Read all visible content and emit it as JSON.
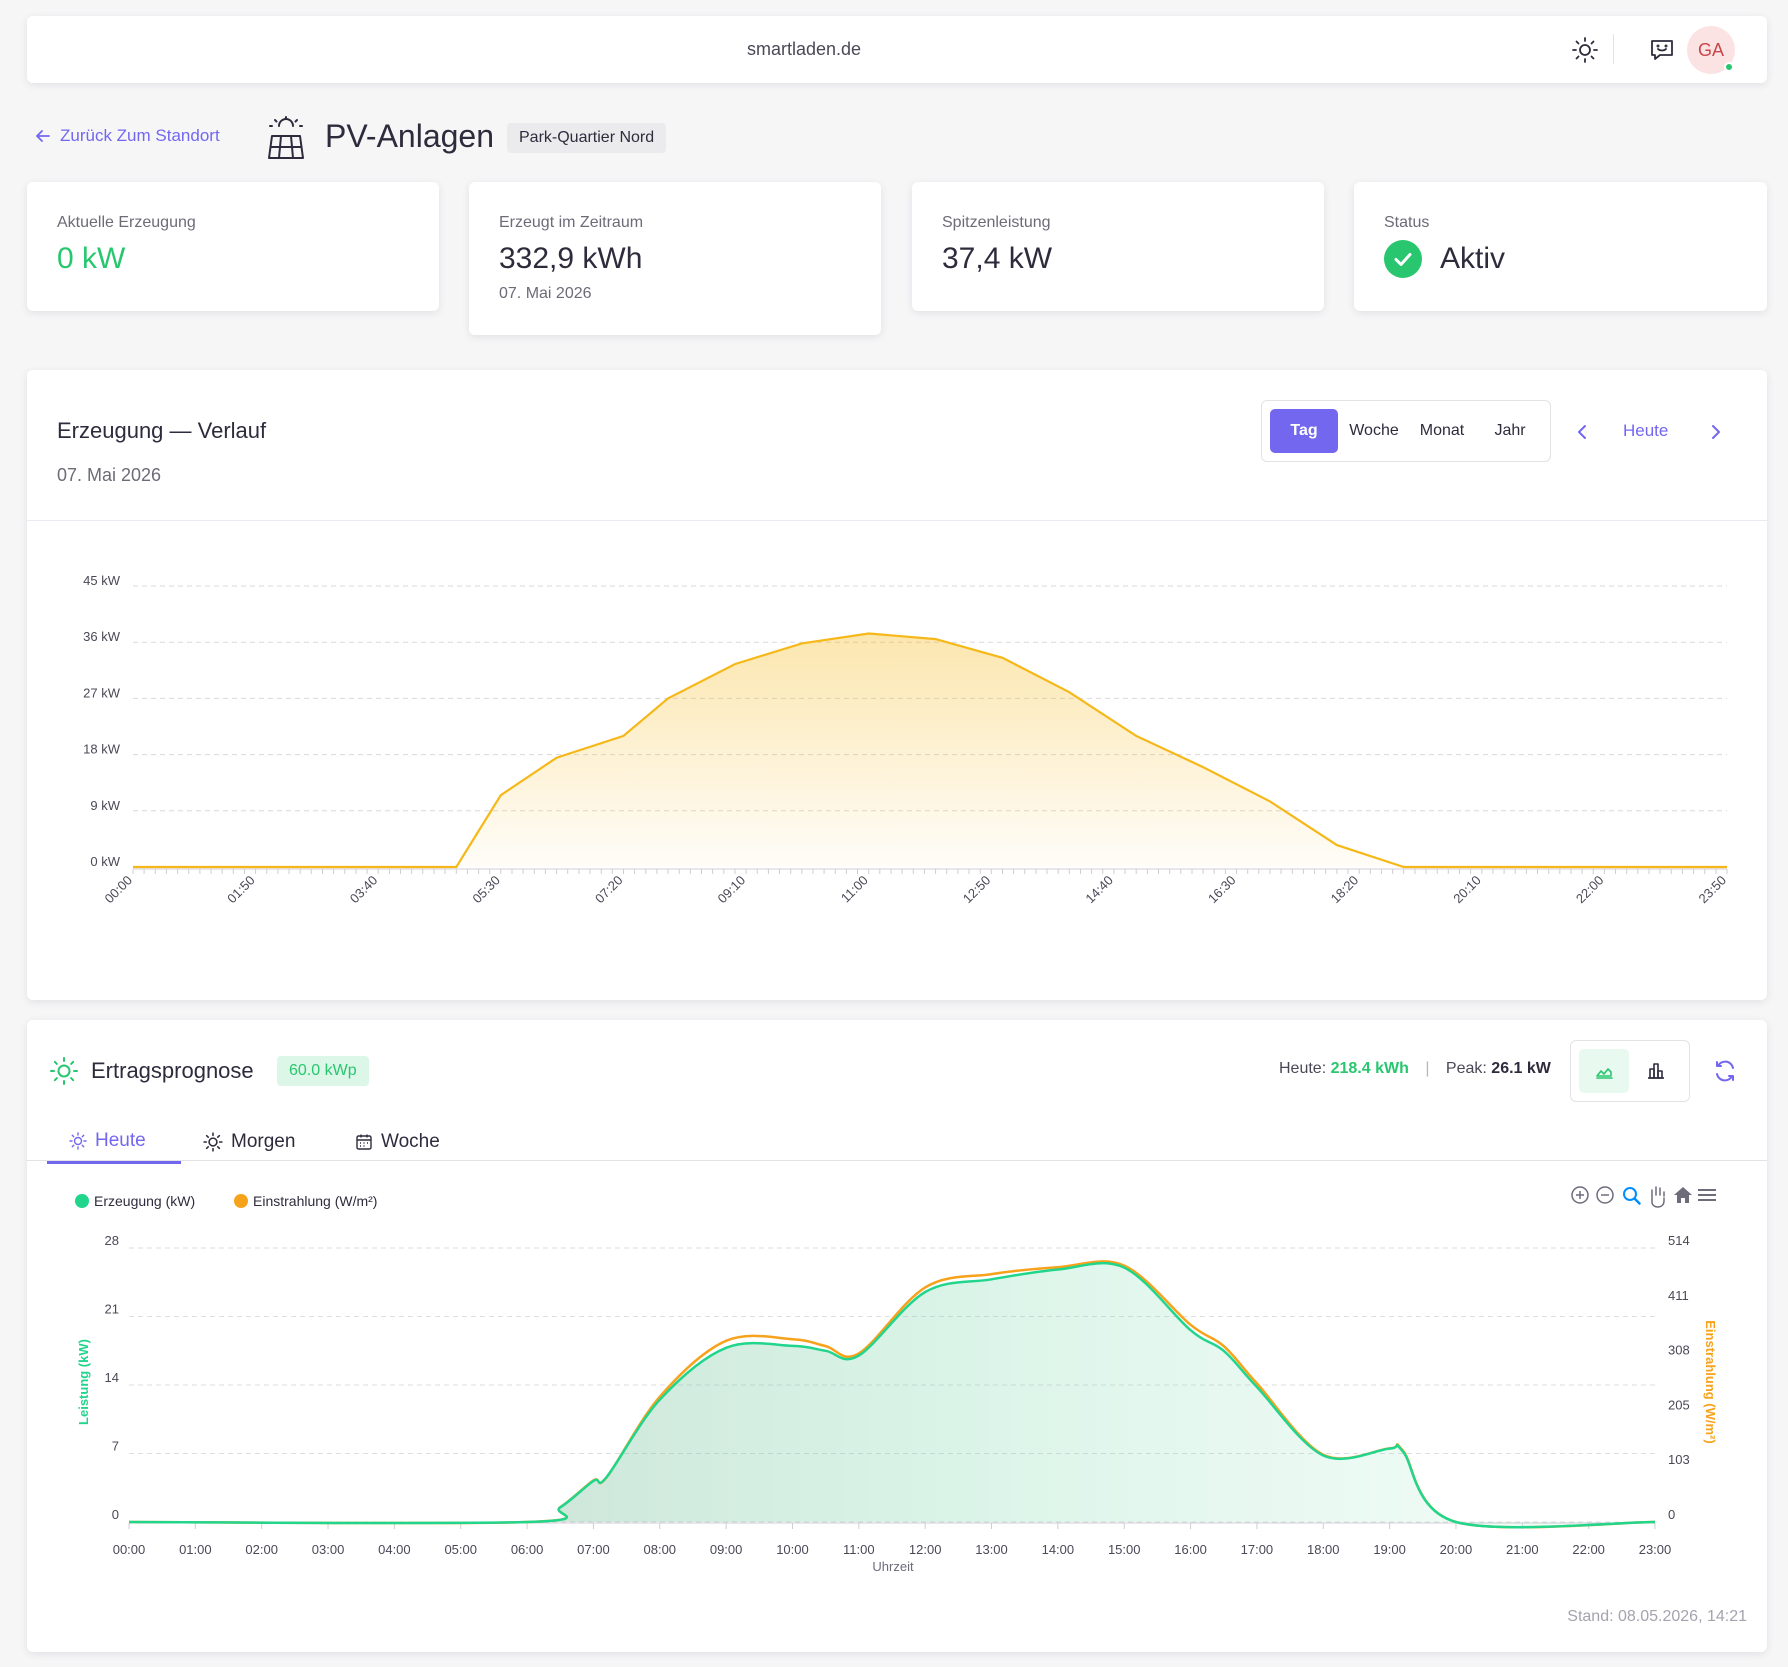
{
  "topbar": {
    "site": "smartladen.de",
    "avatar_initials": "GA"
  },
  "header": {
    "back_label": "Zurück Zum Standort",
    "title": "PV-Anlagen",
    "location": "Park-Quartier Nord"
  },
  "kpis": {
    "current": {
      "label": "Aktuelle Erzeugung",
      "value": "0 kW"
    },
    "period": {
      "label": "Erzeugt im Zeitraum",
      "value": "332,9 kWh",
      "sub": "07. Mai 2026"
    },
    "peak": {
      "label": "Spitzenleistung",
      "value": "37,4 kW"
    },
    "status": {
      "label": "Status",
      "value": "Aktiv"
    }
  },
  "generation": {
    "title": "Erzeugung — Verlauf",
    "date": "07. Mai 2026",
    "ranges": [
      "Tag",
      "Woche",
      "Monat",
      "Jahr"
    ],
    "active_range": "Tag",
    "today_label": "Heute"
  },
  "forecast": {
    "title": "Ertragsprognose",
    "kwp": "60.0 kWp",
    "today_prefix": "Heute:",
    "today_value": "218.4 kWh",
    "peak_prefix": "Peak:",
    "peak_value": "26.1 kW",
    "tabs": [
      "Heute",
      "Morgen",
      "Woche"
    ],
    "active_tab": "Heute",
    "stand": "Stand: 08.05.2026, 14:21"
  },
  "chart_data": [
    {
      "type": "area",
      "ylim": [
        0,
        45
      ],
      "y_ticks": [
        "0 kW",
        "9 kW",
        "18 kW",
        "27 kW",
        "36 kW",
        "45 kW"
      ],
      "x_ticks": [
        "00:00",
        "01:50",
        "03:40",
        "05:30",
        "07:20",
        "09:10",
        "11:00",
        "12:50",
        "14:40",
        "16:30",
        "18:20",
        "20:10",
        "22:00",
        "23:50"
      ],
      "grid": true,
      "color": "#f6b819",
      "x": [
        "00:00",
        "04:50",
        "05:30",
        "06:20",
        "07:20",
        "08:00",
        "09:00",
        "10:00",
        "11:00",
        "12:00",
        "13:00",
        "14:00",
        "15:00",
        "16:00",
        "17:00",
        "18:00",
        "19:00",
        "20:10",
        "23:50"
      ],
      "values": [
        0,
        0,
        11.5,
        17.5,
        21,
        27,
        32.5,
        35.8,
        37.4,
        36.5,
        33.5,
        28,
        21,
        16,
        10.5,
        3.5,
        0,
        0,
        0
      ]
    },
    {
      "type": "area",
      "legend": [
        "Erzeugung (kW)",
        "Einstrahlung (W/m²)"
      ],
      "legend_placement": "top-left",
      "xlabel": "Uhrzeit",
      "ylabel_left": "Leistung (kW)",
      "ylabel_right": "Einstrahlung (W/m²)",
      "ylim_left": [
        0,
        28
      ],
      "ylim_right": [
        0,
        514
      ],
      "y_ticks_left": [
        "0",
        "7",
        "14",
        "21",
        "28"
      ],
      "y_ticks_right": [
        "0",
        "103",
        "205",
        "308",
        "411",
        "514"
      ],
      "x_ticks": [
        "00:00",
        "01:00",
        "02:00",
        "03:00",
        "04:00",
        "05:00",
        "06:00",
        "07:00",
        "08:00",
        "09:00",
        "10:00",
        "11:00",
        "12:00",
        "13:00",
        "14:00",
        "15:00",
        "16:00",
        "17:00",
        "18:00",
        "19:00",
        "20:00",
        "21:00",
        "22:00",
        "23:00"
      ],
      "colors": {
        "erzeugung": "#21d58d",
        "einstrahlung": "#f7a21b"
      },
      "series": [
        {
          "name": "Erzeugung (kW)",
          "x": [
            0,
            6,
            6.5,
            7,
            7.2,
            8,
            9,
            10,
            10.5,
            11,
            12,
            13,
            14,
            15,
            16,
            16.5,
            17,
            18,
            19,
            19.2,
            20,
            23
          ],
          "values": [
            0,
            0,
            1.5,
            4.2,
            4.6,
            12.5,
            17.8,
            18,
            17.5,
            17,
            23.5,
            24.8,
            25.8,
            26,
            19.6,
            17.5,
            13.8,
            6.8,
            7.5,
            7.2,
            0,
            0
          ]
        },
        {
          "name": "Einstrahlung (W/m²)",
          "x": [
            0,
            6,
            6.5,
            7,
            7.2,
            8,
            9,
            10,
            10.5,
            11,
            12,
            13,
            14,
            15,
            16,
            16.5,
            17,
            18,
            19,
            19.2,
            20,
            23
          ],
          "values": [
            0,
            0,
            28,
            78,
            84,
            235,
            340,
            343,
            330,
            316,
            440,
            465,
            478,
            481,
            370,
            330,
            260,
            126,
            138,
            134,
            0,
            0
          ]
        }
      ]
    }
  ]
}
